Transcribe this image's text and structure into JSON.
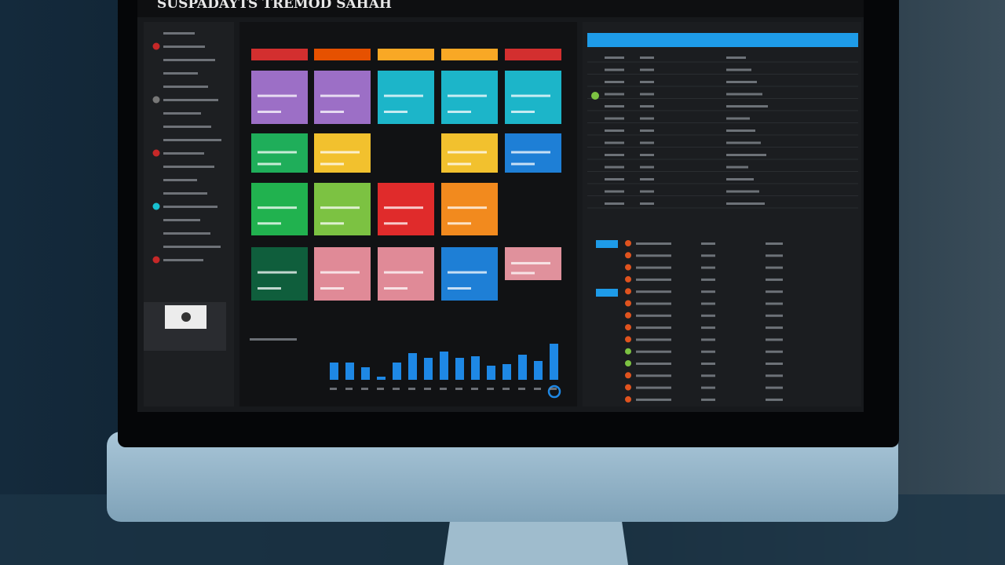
{
  "header": {
    "title": "SUSPADAYTS TREMOD SAHAH"
  },
  "bar_chart": {
    "values": [
      22,
      22,
      16,
      4,
      22,
      34,
      28,
      36,
      28,
      30,
      18,
      20,
      32,
      24,
      46
    ],
    "color": "#1e88e5"
  }
}
